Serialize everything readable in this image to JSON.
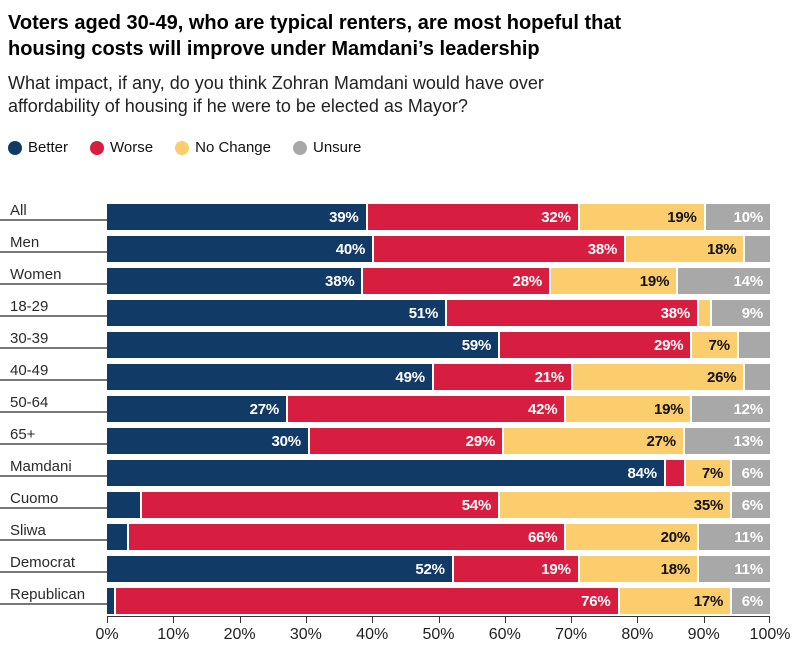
{
  "title": {
    "line1": "Voters aged 30-49, who are typical renters, are most hopeful that",
    "line2": "housing costs will improve under Mamdani’s leadership"
  },
  "subtitle": {
    "line1": "What impact, if any, do you think Zohran Mamdani would have over",
    "line2": "affordability of housing if he were to be elected as Mayor?"
  },
  "legend": {
    "items": [
      {
        "label": "Better",
        "color": "#123a67"
      },
      {
        "label": "Worse",
        "color": "#d81e40"
      },
      {
        "label": "No Change",
        "color": "#fccd6d"
      },
      {
        "label": "Unsure",
        "color": "#a8a8a8"
      }
    ]
  },
  "chart_data": {
    "type": "bar",
    "stacked": true,
    "orientation": "horizontal",
    "categories": [
      "All",
      "Men",
      "Women",
      "18-29",
      "30-39",
      "40-49",
      "50-64",
      "65+",
      "Mamdani",
      "Cuomo",
      "Sliwa",
      "Democrat",
      "Republican"
    ],
    "series": [
      {
        "name": "Better",
        "color": "#123a67",
        "label_color": "#ffffff",
        "values": [
          39,
          40,
          38,
          51,
          59,
          49,
          27,
          30,
          84,
          5,
          3,
          52,
          1
        ]
      },
      {
        "name": "Worse",
        "color": "#d81e40",
        "label_color": "#ffffff",
        "values": [
          32,
          38,
          28,
          38,
          29,
          21,
          42,
          29,
          3,
          54,
          66,
          19,
          76
        ]
      },
      {
        "name": "No Change",
        "color": "#fccd6d",
        "label_color": "#111111",
        "values": [
          19,
          18,
          19,
          2,
          7,
          26,
          19,
          27,
          7,
          35,
          20,
          18,
          17
        ]
      },
      {
        "name": "Unsure",
        "color": "#a8a8a8",
        "label_color": "#ffffff",
        "values": [
          10,
          4,
          14,
          9,
          5,
          4,
          12,
          13,
          6,
          6,
          11,
          11,
          6
        ]
      }
    ],
    "value_suffix": "%",
    "min_value_for_label": 6,
    "x_axis": {
      "range": [
        0,
        100
      ],
      "ticks": [
        "0%",
        "10%",
        "20%",
        "30%",
        "40%",
        "50%",
        "60%",
        "70%",
        "80%",
        "90%",
        "100%"
      ]
    },
    "legend_position": "top",
    "grid": false
  }
}
